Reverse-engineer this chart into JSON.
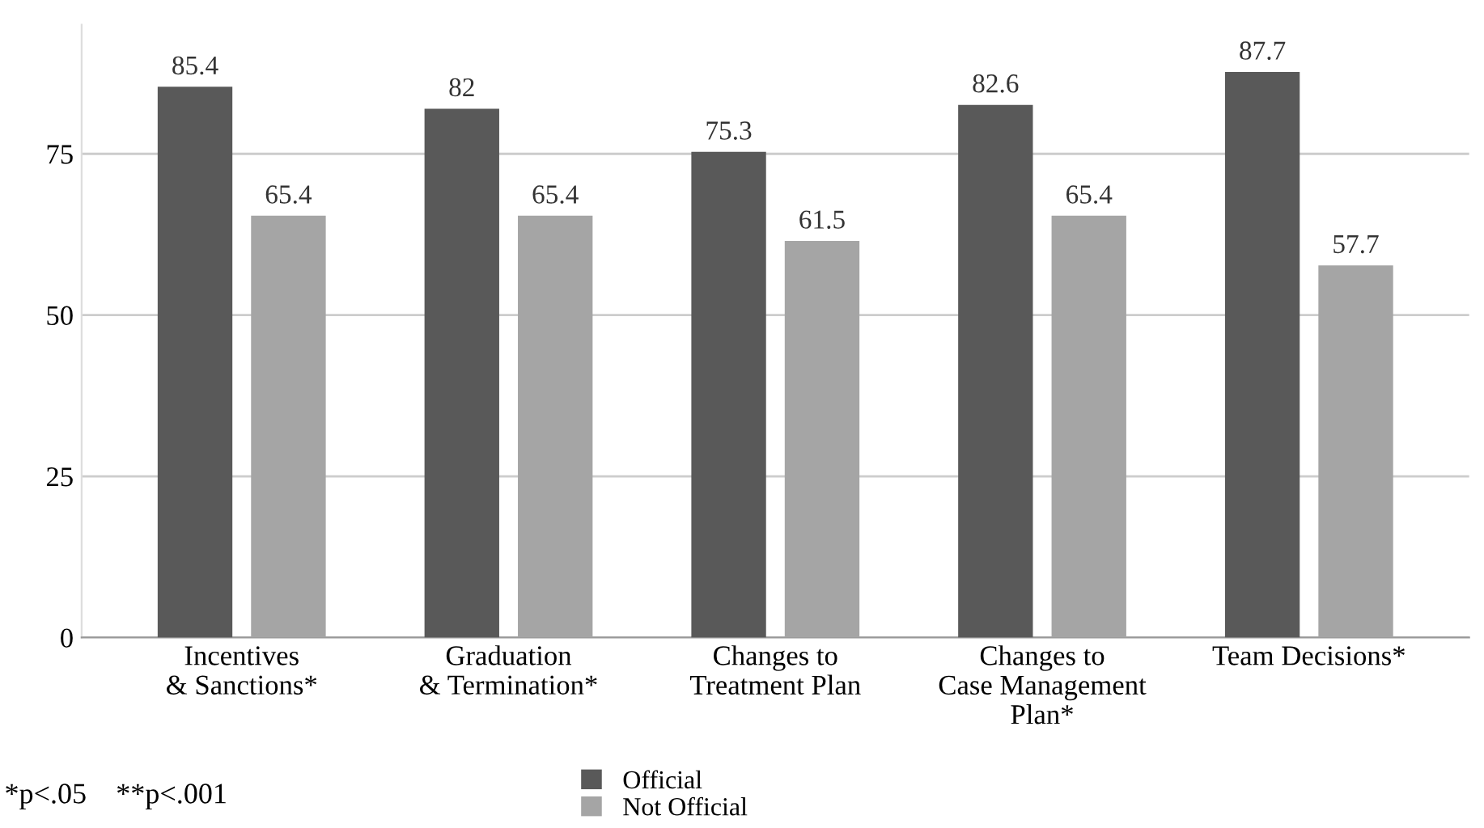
{
  "chart_data": {
    "type": "bar",
    "categories": [
      "Incentives\n& Sanctions*",
      "Graduation\n& Termination*",
      "Changes to\nTreatment Plan",
      "Changes to\nCase Management\nPlan*",
      "Team Decisions*"
    ],
    "series": [
      {
        "name": "Official",
        "color": "#595959",
        "values": [
          85.4,
          82,
          75.3,
          82.6,
          87.7
        ]
      },
      {
        "name": "Not Official",
        "color": "#a5a5a5",
        "values": [
          65.4,
          65.4,
          61.5,
          65.4,
          57.7
        ]
      }
    ],
    "ylim": [
      0,
      95
    ],
    "yticks": [
      0,
      25,
      50,
      75
    ],
    "grid": "y",
    "legend": "bottom",
    "data_labels": true,
    "annotations": [
      "*p<.05    **p<.001"
    ]
  }
}
